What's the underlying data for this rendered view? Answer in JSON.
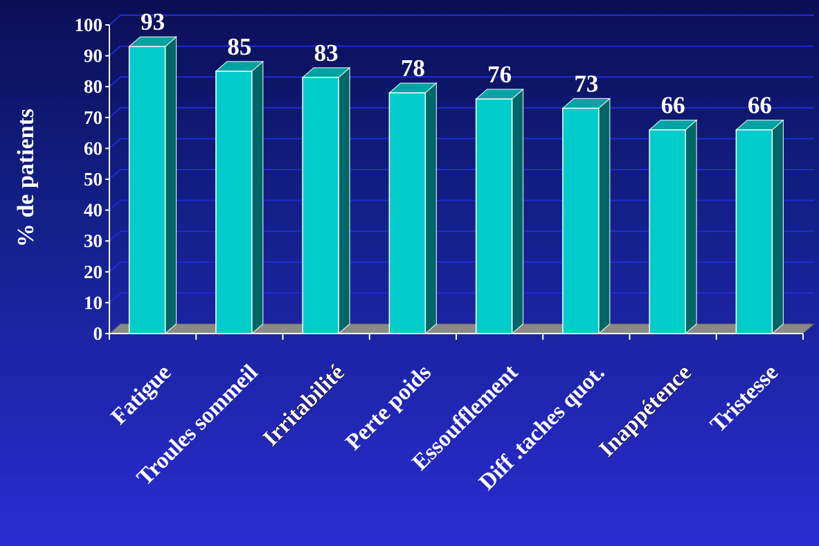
{
  "chart_data": {
    "type": "bar",
    "title": "",
    "xlabel": "",
    "ylabel": "% de patients",
    "ylim": [
      0,
      100
    ],
    "yticks": [
      0,
      10,
      20,
      30,
      40,
      50,
      60,
      70,
      80,
      90,
      100
    ],
    "categories": [
      "Fatigue",
      "Troules sommeil",
      "Irritabilité",
      "Perte poids",
      "Essoufflement",
      "Diff .taches quot.",
      "Inappétence",
      "Tristesse"
    ],
    "values": [
      93,
      85,
      83,
      78,
      76,
      73,
      66,
      66
    ],
    "data_labels": [
      "93",
      "85",
      "83",
      "78",
      "76",
      "73",
      "66",
      "66"
    ],
    "grid": true,
    "legend": "none",
    "colors": {
      "bar_front": "#00cccc",
      "bar_side": "#006666",
      "bar_top": "#00a3a3",
      "bar_edge": "#ffffff",
      "gridline": "#1e2bd6",
      "floor": "#8a8a8a",
      "axis": "#ffffff",
      "text": "#ffffff"
    }
  }
}
